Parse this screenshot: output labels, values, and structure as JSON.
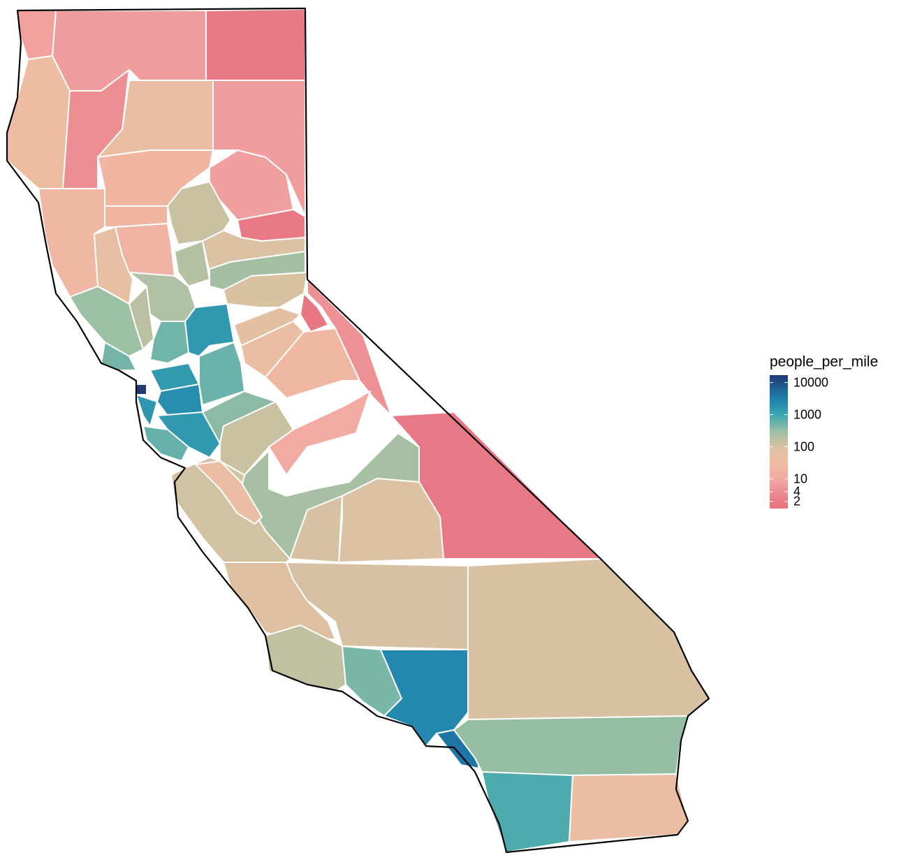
{
  "chart_data": {
    "type": "choropleth",
    "legend_title": "people_per_mile",
    "log_scale": true,
    "clim": [
      1.2,
      17000
    ],
    "ticks": [
      10000,
      1000,
      100,
      10,
      4,
      2
    ],
    "color_stops": [
      {
        "value": 1.2,
        "color": "#e8727f"
      },
      {
        "value": 2,
        "color": "#e87a86"
      },
      {
        "value": 10,
        "color": "#f2a8a3"
      },
      {
        "value": 30,
        "color": "#f0bca2"
      },
      {
        "value": 100,
        "color": "#dcc2a2"
      },
      {
        "value": 300,
        "color": "#9cc0a3"
      },
      {
        "value": 1000,
        "color": "#3aa6b0"
      },
      {
        "value": 3000,
        "color": "#1e80ad"
      },
      {
        "value": 17000,
        "color": "#1f3a75"
      }
    ],
    "values": [
      8,
      7,
      1.9,
      37,
      4,
      47,
      7,
      21,
      7.5,
      23,
      21,
      140,
      1.9,
      52,
      19,
      200,
      103,
      260,
      305,
      180,
      210,
      490,
      510,
      1500,
      105,
      65,
      45,
      24,
      4.5,
      1.6,
      1.8,
      17000,
      1400,
      2000,
      1600,
      1450,
      590,
      550,
      370,
      140,
      250,
      12,
      100,
      110,
      120,
      40,
      85,
      110,
      160,
      460,
      2400,
      3800,
      105,
      330,
      790,
      40
    ]
  }
}
